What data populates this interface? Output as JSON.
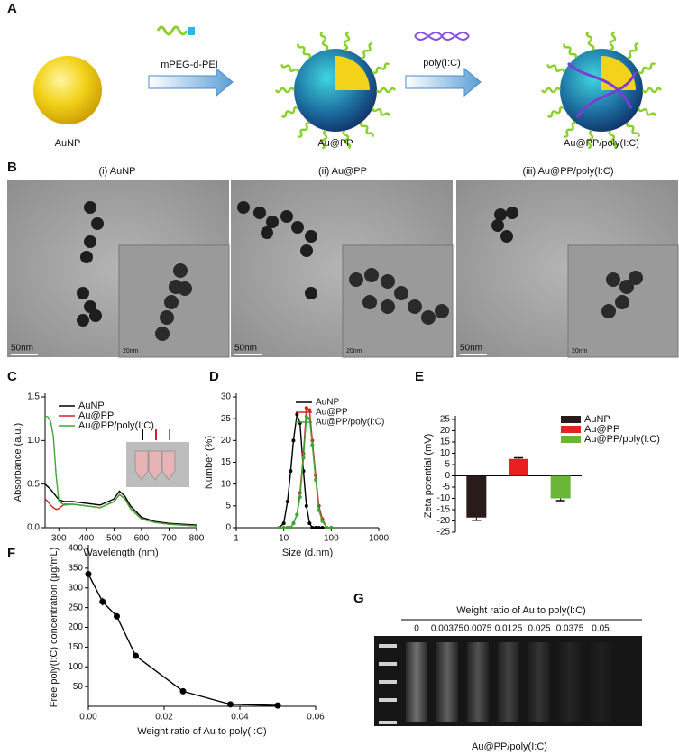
{
  "figure": {
    "panel_labels": [
      "A",
      "B",
      "C",
      "D",
      "E",
      "F",
      "G"
    ],
    "scheme": {
      "items": [
        "AuNP",
        "Au@PP",
        "Au@PP/poly(I:C)"
      ],
      "steps": [
        "mPEG-d-PEI",
        "poly(I:C)"
      ]
    },
    "tem": {
      "titles": [
        "(i) AuNP",
        "(ii) Au@PP",
        "(iii) Au@PP/poly(I:C)"
      ],
      "scale_large": "50nm",
      "scale_small": "20nm"
    },
    "gel": {
      "title": "Weight ratio of Au to poly(I:C)",
      "lanes": [
        "0",
        "0.00375",
        "0.0075",
        "0.0125",
        "0.025",
        "0.0375",
        "0.05"
      ],
      "caption": "Au@PP/poly(I:C)"
    }
  },
  "chart_data": [
    {
      "type": "line",
      "x_label": "Wavelength (nm)",
      "y_label": "Absorbance (a.u.)",
      "x": [
        250,
        260,
        270,
        280,
        290,
        300,
        320,
        350,
        400,
        450,
        500,
        520,
        540,
        560,
        600,
        650,
        700,
        800
      ],
      "series": [
        {
          "name": "AuNP",
          "color": "#000000",
          "values": [
            0.5,
            0.47,
            0.44,
            0.4,
            0.36,
            0.32,
            0.3,
            0.3,
            0.28,
            0.26,
            0.33,
            0.42,
            0.36,
            0.25,
            0.12,
            0.07,
            0.05,
            0.03
          ]
        },
        {
          "name": "Au@PP",
          "color": "#d62020",
          "values": [
            0.33,
            0.3,
            0.26,
            0.23,
            0.21,
            0.22,
            0.27,
            0.27,
            0.25,
            0.23,
            0.3,
            0.38,
            0.33,
            0.22,
            0.1,
            0.06,
            0.04,
            0.02
          ]
        },
        {
          "name": "Au@PP/poly(I:C)",
          "color": "#3aa832",
          "values": [
            1.28,
            1.27,
            1.22,
            1.05,
            0.6,
            0.3,
            0.26,
            0.27,
            0.25,
            0.23,
            0.3,
            0.38,
            0.33,
            0.22,
            0.1,
            0.06,
            0.04,
            0.02
          ]
        }
      ],
      "xlim": [
        250,
        800
      ],
      "xticks": [
        300,
        400,
        500,
        600,
        700,
        800
      ],
      "ylim": [
        0,
        1.5
      ],
      "yticks": [
        {
          "value": 0,
          "label": "0.0"
        },
        0.5,
        {
          "value": 1,
          "label": "1.0"
        },
        1.5
      ],
      "legend": "upper left",
      "markers": false
    },
    {
      "type": "line",
      "x_label": "Size (d.nm)",
      "y_label": "Number (%)",
      "x": [
        8,
        10,
        12,
        14,
        16,
        19,
        22,
        26,
        30,
        35,
        40,
        47,
        55,
        65,
        80,
        100
      ],
      "series": [
        {
          "name": "AuNP",
          "color": "#000000",
          "values": [
            0,
            1,
            6,
            13,
            20,
            26,
            24,
            13,
            5,
            1,
            0,
            0,
            0,
            0,
            0,
            0
          ]
        },
        {
          "name": "Au@PP",
          "color": "#d62020",
          "values": [
            0,
            0,
            0,
            0,
            1,
            3,
            8,
            17,
            27.5,
            27,
            20,
            12,
            5,
            2,
            0,
            0
          ]
        },
        {
          "name": "Au@PP/poly(I:C)",
          "color": "#3aa832",
          "values": [
            0,
            0,
            0,
            0,
            1,
            3,
            7,
            16,
            25.5,
            25,
            19,
            11,
            4,
            1.5,
            0,
            0
          ]
        }
      ],
      "xlim": [
        1,
        1000
      ],
      "xticks": [
        1,
        10,
        100,
        1000
      ],
      "log_x": true,
      "ylim": [
        0,
        30
      ],
      "yticks": [
        0,
        5,
        10,
        15,
        20,
        25,
        30
      ],
      "legend": "upper right",
      "markers": true
    },
    {
      "type": "bar",
      "y_label": "Zeta potential (mV)",
      "categories": [
        "AuNP",
        "Au@PP",
        "Au@PP/poly(I:C)"
      ],
      "values": [
        -18.5,
        7.5,
        -10
      ],
      "errors": [
        1.2,
        0.5,
        1
      ],
      "colors": [
        "#2a1a1a",
        "#e82020",
        "#6ab536"
      ],
      "ylim": [
        -25,
        25
      ],
      "yticks": [
        -25,
        -20,
        -15,
        -10,
        -5,
        0,
        5,
        10,
        15,
        20,
        25
      ],
      "legend": "outside right"
    },
    {
      "type": "line",
      "x_label": "Weight ratio of Au to poly(I:C)",
      "y_label": "Free poly(I:C) concentration (μg/mL)",
      "x": [
        0,
        0.00375,
        0.0075,
        0.0125,
        0.025,
        0.0375,
        0.05
      ],
      "series": [
        {
          "color": "#000000",
          "values": [
            335,
            265,
            228,
            128,
            38,
            5,
            2
          ],
          "errors": [
            5,
            10,
            4,
            3,
            2,
            1,
            1
          ]
        }
      ],
      "xlim": [
        0,
        0.06
      ],
      "xticks": [
        {
          "value": 0,
          "label": "0.00"
        },
        {
          "value": 0.02,
          "label": "0.02"
        },
        {
          "value": 0.04,
          "label": "0.04"
        },
        {
          "value": 0.06,
          "label": "0.06"
        }
      ],
      "ylim": [
        0,
        400
      ],
      "yticks": [
        50,
        100,
        150,
        200,
        250,
        300,
        350,
        400
      ],
      "markers": true
    }
  ]
}
